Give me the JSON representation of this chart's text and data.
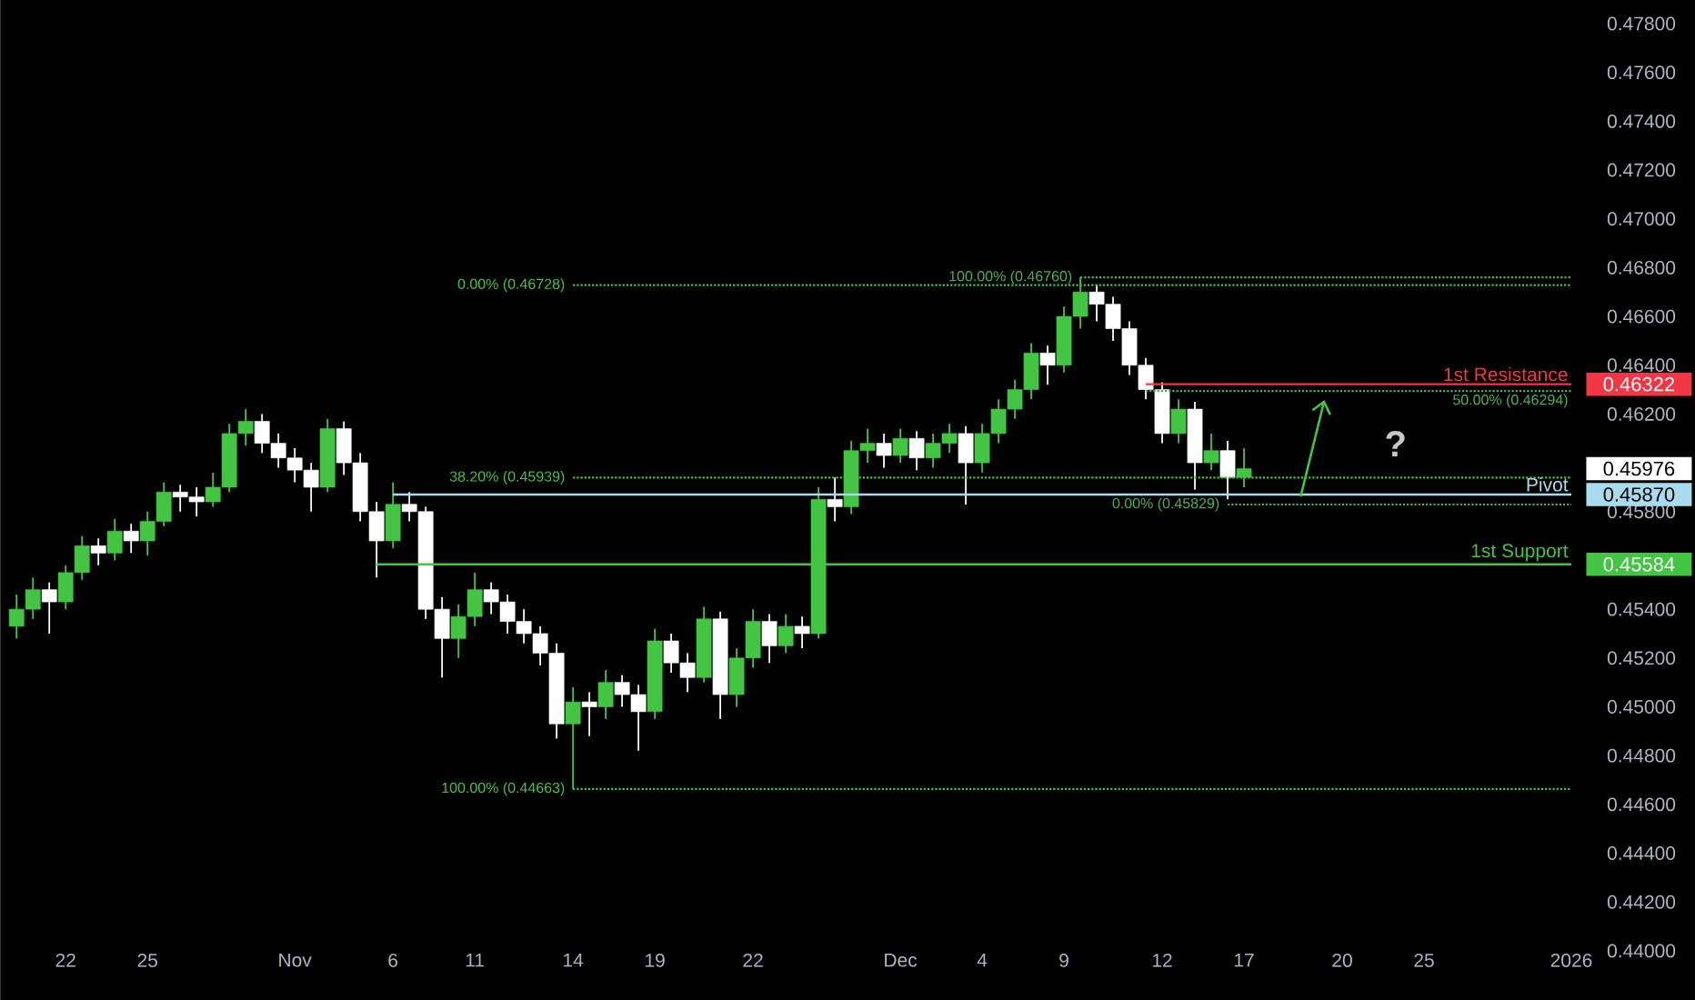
{
  "chart_data": {
    "type": "candlestick",
    "categories": [
      null,
      null,
      null,
      "22",
      null,
      null,
      null,
      null,
      "25",
      null,
      null,
      null,
      null,
      null,
      null,
      null,
      null,
      "Nov",
      null,
      null,
      null,
      null,
      null,
      "6",
      null,
      null,
      null,
      null,
      "11",
      null,
      null,
      null,
      null,
      null,
      "14",
      null,
      null,
      null,
      null,
      "19",
      null,
      null,
      null,
      null,
      null,
      "22",
      null,
      null,
      null,
      null,
      null,
      null,
      null,
      null,
      "Dec",
      null,
      null,
      null,
      null,
      "4",
      null,
      null,
      null,
      null,
      "9",
      null,
      null,
      null,
      null,
      null,
      "12",
      null,
      null,
      null,
      null,
      "17",
      null,
      null,
      null,
      null,
      null,
      "20",
      null,
      null,
      null,
      null,
      "25",
      null,
      null,
      null,
      null,
      null,
      null,
      null,
      null,
      "2026"
    ],
    "ohlc": [
      [
        0.4533,
        0.4546,
        0.4528,
        0.454
      ],
      [
        0.454,
        0.4553,
        0.4536,
        0.4548
      ],
      [
        0.4548,
        0.4551,
        0.453,
        0.4543
      ],
      [
        0.4543,
        0.4558,
        0.454,
        0.4555
      ],
      [
        0.4555,
        0.457,
        0.4552,
        0.4566
      ],
      [
        0.4566,
        0.4569,
        0.4558,
        0.4563
      ],
      [
        0.4563,
        0.4577,
        0.456,
        0.4572
      ],
      [
        0.4572,
        0.4575,
        0.4563,
        0.4568
      ],
      [
        0.4568,
        0.458,
        0.4562,
        0.4576
      ],
      [
        0.4576,
        0.4592,
        0.4574,
        0.4588
      ],
      [
        0.4588,
        0.4591,
        0.458,
        0.4586
      ],
      [
        0.4586,
        0.459,
        0.4578,
        0.4584
      ],
      [
        0.4584,
        0.4596,
        0.4582,
        0.459
      ],
      [
        0.459,
        0.4616,
        0.4588,
        0.4612
      ],
      [
        0.4612,
        0.4622,
        0.4607,
        0.4617
      ],
      [
        0.4617,
        0.462,
        0.4604,
        0.4608
      ],
      [
        0.4608,
        0.4612,
        0.4598,
        0.4602
      ],
      [
        0.4602,
        0.4606,
        0.4592,
        0.4597
      ],
      [
        0.4597,
        0.46,
        0.458,
        0.459
      ],
      [
        0.459,
        0.4618,
        0.4588,
        0.4614
      ],
      [
        0.4614,
        0.4617,
        0.4595,
        0.46
      ],
      [
        0.46,
        0.4604,
        0.4576,
        0.458
      ],
      [
        0.458,
        0.4584,
        0.4553,
        0.4568
      ],
      [
        0.4568,
        0.4592,
        0.4565,
        0.4583
      ],
      [
        0.4583,
        0.4588,
        0.4576,
        0.458
      ],
      [
        0.458,
        0.4582,
        0.4536,
        0.454
      ],
      [
        0.454,
        0.4545,
        0.4512,
        0.4528
      ],
      [
        0.4528,
        0.4542,
        0.452,
        0.4537
      ],
      [
        0.4537,
        0.4555,
        0.4533,
        0.4548
      ],
      [
        0.4548,
        0.4551,
        0.4538,
        0.4543
      ],
      [
        0.4543,
        0.4546,
        0.453,
        0.4535
      ],
      [
        0.4535,
        0.454,
        0.4526,
        0.453
      ],
      [
        0.453,
        0.4533,
        0.4517,
        0.4522
      ],
      [
        0.4522,
        0.4526,
        0.4487,
        0.4493
      ],
      [
        0.4493,
        0.4508,
        0.44663,
        0.4502
      ],
      [
        0.4502,
        0.4506,
        0.4488,
        0.45
      ],
      [
        0.45,
        0.4515,
        0.4495,
        0.451
      ],
      [
        0.451,
        0.4513,
        0.45,
        0.4505
      ],
      [
        0.4505,
        0.4509,
        0.4482,
        0.4498
      ],
      [
        0.4498,
        0.4532,
        0.4495,
        0.4527
      ],
      [
        0.4527,
        0.453,
        0.4514,
        0.4518
      ],
      [
        0.4518,
        0.4522,
        0.4506,
        0.4512
      ],
      [
        0.4512,
        0.4541,
        0.451,
        0.4536
      ],
      [
        0.4536,
        0.4539,
        0.4495,
        0.4505
      ],
      [
        0.4505,
        0.4524,
        0.45,
        0.452
      ],
      [
        0.452,
        0.454,
        0.4516,
        0.4535
      ],
      [
        0.4535,
        0.4538,
        0.4518,
        0.4525
      ],
      [
        0.4525,
        0.4538,
        0.4522,
        0.4533
      ],
      [
        0.4533,
        0.4537,
        0.4524,
        0.453
      ],
      [
        0.453,
        0.459,
        0.4528,
        0.4585
      ],
      [
        0.4585,
        0.4594,
        0.4576,
        0.4582
      ],
      [
        0.4582,
        0.4609,
        0.4579,
        0.4605
      ],
      [
        0.4605,
        0.4614,
        0.46,
        0.4608
      ],
      [
        0.4608,
        0.4612,
        0.4598,
        0.4603
      ],
      [
        0.4603,
        0.4614,
        0.46,
        0.461
      ],
      [
        0.461,
        0.4613,
        0.4597,
        0.4602
      ],
      [
        0.4602,
        0.4612,
        0.4598,
        0.4608
      ],
      [
        0.4608,
        0.4616,
        0.4604,
        0.4612
      ],
      [
        0.4612,
        0.4615,
        0.45829,
        0.46
      ],
      [
        0.46,
        0.4616,
        0.4596,
        0.4612
      ],
      [
        0.4612,
        0.4626,
        0.4608,
        0.4622
      ],
      [
        0.4622,
        0.4634,
        0.4618,
        0.463
      ],
      [
        0.463,
        0.4649,
        0.4626,
        0.4645
      ],
      [
        0.4645,
        0.4648,
        0.4632,
        0.464
      ],
      [
        0.464,
        0.4664,
        0.4637,
        0.466
      ],
      [
        0.466,
        0.4676,
        0.4655,
        0.467
      ],
      [
        0.467,
        0.4673,
        0.4658,
        0.4665
      ],
      [
        0.4665,
        0.4668,
        0.465,
        0.4655
      ],
      [
        0.4655,
        0.4658,
        0.4636,
        0.464
      ],
      [
        0.464,
        0.4643,
        0.4626,
        0.463
      ],
      [
        0.463,
        0.4633,
        0.4608,
        0.4612
      ],
      [
        0.4612,
        0.4626,
        0.4608,
        0.4622
      ],
      [
        0.4622,
        0.4625,
        0.4589,
        0.46
      ],
      [
        0.46,
        0.4612,
        0.4597,
        0.4605
      ],
      [
        0.4605,
        0.4609,
        0.4585,
        0.4594
      ],
      [
        0.4594,
        0.4606,
        0.459,
        0.45976
      ],
      null,
      null,
      null,
      null,
      null,
      null,
      null,
      null,
      null,
      null,
      null,
      null,
      null,
      null,
      null,
      null,
      null,
      null,
      null,
      null
    ],
    "colors": [
      "#43c443",
      "#43c443",
      "#ffffff",
      "#43c443",
      "#43c443",
      "#ffffff",
      "#43c443",
      "#ffffff",
      "#43c443",
      "#43c443",
      "#ffffff",
      "#ffffff",
      "#43c443",
      "#43c443",
      "#43c443",
      "#ffffff",
      "#ffffff",
      "#ffffff",
      "#ffffff",
      "#43c443",
      "#ffffff",
      "#ffffff",
      "#ffffff",
      "#43c443",
      "#ffffff",
      "#ffffff",
      "#ffffff",
      "#43c443",
      "#43c443",
      "#ffffff",
      "#ffffff",
      "#ffffff",
      "#ffffff",
      "#ffffff",
      "#43c443",
      "#ffffff",
      "#43c443",
      "#ffffff",
      "#ffffff",
      "#43c443",
      "#ffffff",
      "#ffffff",
      "#43c443",
      "#ffffff",
      "#43c443",
      "#43c443",
      "#ffffff",
      "#43c443",
      "#ffffff",
      "#43c443",
      "#ffffff",
      "#43c443",
      "#43c443",
      "#ffffff",
      "#43c443",
      "#ffffff",
      "#43c443",
      "#43c443",
      "#ffffff",
      "#43c443",
      "#43c443",
      "#43c443",
      "#43c443",
      "#ffffff",
      "#43c443",
      "#43c443",
      "#ffffff",
      "#ffffff",
      "#ffffff",
      "#ffffff",
      "#ffffff",
      "#43c443",
      "#ffffff",
      "#43c443",
      "#ffffff",
      "#43c443",
      null,
      null,
      null,
      null,
      null,
      null,
      null,
      null,
      null,
      null,
      null,
      null,
      null,
      null,
      null,
      null,
      null,
      null,
      null,
      null
    ],
    "series": [
      {
        "type": "line",
        "name": "0.00% (0.46728)",
        "color": "#43c443",
        "line_style": "dotted",
        "values": [
          null,
          null,
          null,
          null,
          null,
          null,
          null,
          null,
          null,
          null,
          null,
          null,
          null,
          null,
          null,
          null,
          null,
          null,
          null,
          null,
          null,
          null,
          null,
          null,
          null,
          null,
          null,
          null,
          null,
          null,
          null,
          null,
          null,
          null,
          0.46728,
          0.46728,
          0.46728,
          0.46728,
          0.46728,
          0.46728,
          0.46728,
          0.46728,
          0.46728,
          0.46728,
          0.46728,
          0.46728,
          0.46728,
          0.46728,
          0.46728,
          0.46728,
          0.46728,
          0.46728,
          0.46728,
          0.46728,
          0.46728,
          0.46728,
          0.46728,
          0.46728,
          0.46728,
          0.46728,
          0.46728,
          0.46728,
          0.46728,
          0.46728,
          0.46728,
          0.46728,
          0.46728,
          0.46728,
          0.46728,
          0.46728,
          0.46728,
          0.46728,
          0.46728,
          0.46728,
          0.46728,
          0.46728,
          0.46728,
          0.46728,
          0.46728,
          0.46728,
          0.46728,
          0.46728,
          0.46728,
          0.46728,
          0.46728,
          0.46728,
          0.46728,
          0.46728,
          0.46728,
          0.46728,
          0.46728,
          0.46728,
          0.46728,
          0.46728,
          0.46728,
          0.46728
        ]
      },
      {
        "type": "line",
        "name": "38.20% (0.45939)",
        "color": "#43c443",
        "line_style": "dotted",
        "values": [
          null,
          null,
          null,
          null,
          null,
          null,
          null,
          null,
          null,
          null,
          null,
          null,
          null,
          null,
          null,
          null,
          null,
          null,
          null,
          null,
          null,
          null,
          null,
          null,
          null,
          null,
          null,
          null,
          null,
          null,
          null,
          null,
          null,
          null,
          0.45939,
          0.45939,
          0.45939,
          0.45939,
          0.45939,
          0.45939,
          0.45939,
          0.45939,
          0.45939,
          0.45939,
          0.45939,
          0.45939,
          0.45939,
          0.45939,
          0.45939,
          0.45939,
          0.45939,
          0.45939,
          0.45939,
          0.45939,
          0.45939,
          0.45939,
          0.45939,
          0.45939,
          0.45939,
          0.45939,
          0.45939,
          0.45939,
          0.45939,
          0.45939,
          0.45939,
          0.45939,
          0.45939,
          0.45939,
          0.45939,
          0.45939,
          0.45939,
          0.45939,
          0.45939,
          0.45939,
          0.45939,
          0.45939,
          0.45939,
          0.45939,
          0.45939,
          0.45939,
          0.45939,
          0.45939,
          0.45939,
          0.45939,
          0.45939,
          0.45939,
          0.45939,
          0.45939,
          0.45939,
          0.45939,
          0.45939,
          0.45939,
          0.45939,
          0.45939,
          0.45939,
          0.45939
        ]
      },
      {
        "type": "line",
        "name": "100.00% (0.44663)",
        "color": "#43c443",
        "line_style": "dotted",
        "values": [
          null,
          null,
          null,
          null,
          null,
          null,
          null,
          null,
          null,
          null,
          null,
          null,
          null,
          null,
          null,
          null,
          null,
          null,
          null,
          null,
          null,
          null,
          null,
          null,
          null,
          null,
          null,
          null,
          null,
          null,
          null,
          null,
          null,
          null,
          0.44663,
          0.44663,
          0.44663,
          0.44663,
          0.44663,
          0.44663,
          0.44663,
          0.44663,
          0.44663,
          0.44663,
          0.44663,
          0.44663,
          0.44663,
          0.44663,
          0.44663,
          0.44663,
          0.44663,
          0.44663,
          0.44663,
          0.44663,
          0.44663,
          0.44663,
          0.44663,
          0.44663,
          0.44663,
          0.44663,
          0.44663,
          0.44663,
          0.44663,
          0.44663,
          0.44663,
          0.44663,
          0.44663,
          0.44663,
          0.44663,
          0.44663,
          0.44663,
          0.44663,
          0.44663,
          0.44663,
          0.44663,
          0.44663,
          0.44663,
          0.44663,
          0.44663,
          0.44663,
          0.44663,
          0.44663,
          0.44663,
          0.44663,
          0.44663,
          0.44663,
          0.44663,
          0.44663,
          0.44663,
          0.44663,
          0.44663,
          0.44663,
          0.44663,
          0.44663,
          0.44663,
          0.44663
        ]
      },
      {
        "type": "line",
        "name": "100.00% (0.46760)",
        "color": "#4caf50",
        "line_style": "dotted",
        "values": [
          null,
          null,
          null,
          null,
          null,
          null,
          null,
          null,
          null,
          null,
          null,
          null,
          null,
          null,
          null,
          null,
          null,
          null,
          null,
          null,
          null,
          null,
          null,
          null,
          null,
          null,
          null,
          null,
          null,
          null,
          null,
          null,
          null,
          null,
          null,
          null,
          null,
          null,
          null,
          null,
          null,
          null,
          null,
          null,
          null,
          null,
          null,
          null,
          null,
          null,
          null,
          null,
          null,
          null,
          null,
          null,
          null,
          null,
          null,
          null,
          null,
          null,
          null,
          null,
          null,
          0.4676,
          0.4676,
          0.4676,
          0.4676,
          0.4676,
          0.4676,
          0.4676,
          0.4676,
          0.4676,
          0.4676,
          0.4676,
          0.4676,
          0.4676,
          0.4676,
          0.4676,
          0.4676,
          0.4676,
          0.4676,
          0.4676,
          0.4676,
          0.4676,
          0.4676,
          0.4676,
          0.4676,
          0.4676,
          0.4676,
          0.4676,
          0.4676,
          0.4676,
          0.4676,
          0.4676
        ]
      },
      {
        "type": "line",
        "name": "50.00% (0.46294)",
        "color": "#4caf50",
        "line_style": "dotted",
        "values": [
          null,
          null,
          null,
          null,
          null,
          null,
          null,
          null,
          null,
          null,
          null,
          null,
          null,
          null,
          null,
          null,
          null,
          null,
          null,
          null,
          null,
          null,
          null,
          null,
          null,
          null,
          null,
          null,
          null,
          null,
          null,
          null,
          null,
          null,
          null,
          null,
          null,
          null,
          null,
          null,
          null,
          null,
          null,
          null,
          null,
          null,
          null,
          null,
          null,
          null,
          null,
          null,
          null,
          null,
          null,
          null,
          null,
          null,
          null,
          null,
          null,
          null,
          null,
          null,
          null,
          null,
          null,
          null,
          null,
          0.46294,
          0.46294,
          0.46294,
          0.46294,
          0.46294,
          0.46294,
          0.46294,
          0.46294,
          0.46294,
          0.46294,
          0.46294,
          0.46294,
          0.46294,
          0.46294,
          0.46294,
          0.46294,
          0.46294,
          0.46294,
          0.46294,
          0.46294,
          0.46294,
          0.46294,
          0.46294,
          0.46294,
          0.46294,
          0.46294,
          0.46294
        ]
      },
      {
        "type": "line",
        "name": "0.00% (0.45829)",
        "color": "#4caf50",
        "line_style": "dotted",
        "values": [
          null,
          null,
          null,
          null,
          null,
          null,
          null,
          null,
          null,
          null,
          null,
          null,
          null,
          null,
          null,
          null,
          null,
          null,
          null,
          null,
          null,
          null,
          null,
          null,
          null,
          null,
          null,
          null,
          null,
          null,
          null,
          null,
          null,
          null,
          null,
          null,
          null,
          null,
          null,
          null,
          null,
          null,
          null,
          null,
          null,
          null,
          null,
          null,
          null,
          null,
          null,
          null,
          null,
          null,
          null,
          null,
          null,
          null,
          null,
          null,
          null,
          null,
          null,
          null,
          null,
          null,
          null,
          null,
          null,
          null,
          null,
          null,
          null,
          null,
          0.45829,
          0.45829,
          0.45829,
          0.45829,
          0.45829,
          0.45829,
          0.45829,
          0.45829,
          0.45829,
          0.45829,
          0.45829,
          0.45829,
          0.45829,
          0.45829,
          0.45829,
          0.45829,
          0.45829,
          0.45829,
          0.45829,
          0.45829,
          0.45829,
          0.45829
        ]
      },
      {
        "type": "line",
        "name": "1st Resistance",
        "color": "#f23645",
        "line_style": "solid",
        "values": [
          null,
          null,
          null,
          null,
          null,
          null,
          null,
          null,
          null,
          null,
          null,
          null,
          null,
          null,
          null,
          null,
          null,
          null,
          null,
          null,
          null,
          null,
          null,
          null,
          null,
          null,
          null,
          null,
          null,
          null,
          null,
          null,
          null,
          null,
          null,
          null,
          null,
          null,
          null,
          null,
          null,
          null,
          null,
          null,
          null,
          null,
          null,
          null,
          null,
          null,
          null,
          null,
          null,
          null,
          null,
          null,
          null,
          null,
          null,
          null,
          null,
          null,
          null,
          null,
          null,
          null,
          null,
          null,
          null,
          0.46322,
          0.46322,
          0.46322,
          0.46322,
          0.46322,
          0.46322,
          0.46322,
          0.46322,
          0.46322,
          0.46322,
          0.46322,
          0.46322,
          0.46322,
          0.46322,
          0.46322,
          0.46322,
          0.46322,
          0.46322,
          0.46322,
          0.46322,
          0.46322,
          0.46322,
          0.46322,
          0.46322,
          0.46322,
          0.46322,
          0.46322
        ],
        "value_labels": [
          null,
          null,
          null,
          null,
          null,
          null,
          null,
          null,
          null,
          null,
          null,
          null,
          null,
          null,
          null,
          null,
          null,
          null,
          null,
          null,
          null,
          null,
          null,
          null,
          null,
          null,
          null,
          null,
          null,
          null,
          null,
          null,
          null,
          null,
          null,
          null,
          null,
          null,
          null,
          null,
          null,
          null,
          null,
          null,
          null,
          null,
          null,
          null,
          null,
          null,
          null,
          null,
          null,
          null,
          null,
          null,
          null,
          null,
          null,
          null,
          null,
          null,
          null,
          null,
          null,
          null,
          null,
          null,
          null,
          null,
          null,
          null,
          null,
          null,
          null,
          null,
          null,
          null,
          null,
          null,
          null,
          null,
          null,
          null,
          null,
          null,
          null,
          null,
          null,
          null,
          null,
          null,
          null,
          null,
          null,
          "0.46322"
        ]
      },
      {
        "type": "line",
        "name": "Pivot",
        "color": "#a8dcec",
        "line_style": "solid",
        "values": [
          null,
          null,
          null,
          null,
          null,
          null,
          null,
          null,
          null,
          null,
          null,
          null,
          null,
          null,
          null,
          null,
          null,
          null,
          null,
          null,
          null,
          null,
          null,
          0.4587,
          0.4587,
          0.4587,
          0.4587,
          0.4587,
          0.4587,
          0.4587,
          0.4587,
          0.4587,
          0.4587,
          0.4587,
          0.4587,
          0.4587,
          0.4587,
          0.4587,
          0.4587,
          0.4587,
          0.4587,
          0.4587,
          0.4587,
          0.4587,
          0.4587,
          0.4587,
          0.4587,
          0.4587,
          0.4587,
          0.4587,
          0.4587,
          0.4587,
          0.4587,
          0.4587,
          0.4587,
          0.4587,
          0.4587,
          0.4587,
          0.4587,
          0.4587,
          0.4587,
          0.4587,
          0.4587,
          0.4587,
          0.4587,
          0.4587,
          0.4587,
          0.4587,
          0.4587,
          0.4587,
          0.4587,
          0.4587,
          0.4587,
          0.4587,
          0.4587,
          0.4587,
          0.4587,
          0.4587,
          0.4587,
          0.4587,
          0.4587,
          0.4587,
          0.4587,
          0.4587,
          0.4587,
          0.4587,
          0.4587,
          0.4587,
          0.4587,
          0.4587,
          0.4587,
          0.4587,
          0.4587,
          0.4587,
          0.4587,
          0.4587
        ],
        "value_labels": [
          null,
          null,
          null,
          null,
          null,
          null,
          null,
          null,
          null,
          null,
          null,
          null,
          null,
          null,
          null,
          null,
          null,
          null,
          null,
          null,
          null,
          null,
          null,
          null,
          null,
          null,
          null,
          null,
          null,
          null,
          null,
          null,
          null,
          null,
          null,
          null,
          null,
          null,
          null,
          null,
          null,
          null,
          null,
          null,
          null,
          null,
          null,
          null,
          null,
          null,
          null,
          null,
          null,
          null,
          null,
          null,
          null,
          null,
          null,
          null,
          null,
          null,
          null,
          null,
          null,
          null,
          null,
          null,
          null,
          null,
          null,
          null,
          null,
          null,
          null,
          null,
          null,
          null,
          null,
          null,
          null,
          null,
          null,
          null,
          null,
          null,
          null,
          null,
          null,
          null,
          null,
          null,
          null,
          null,
          null,
          "0.45870"
        ]
      },
      {
        "type": "line",
        "name": "1st Support",
        "color": "#43c443",
        "line_style": "solid",
        "values": [
          null,
          null,
          null,
          null,
          null,
          null,
          null,
          null,
          null,
          null,
          null,
          null,
          null,
          null,
          null,
          null,
          null,
          null,
          null,
          null,
          null,
          null,
          0.45584,
          0.45584,
          0.45584,
          0.45584,
          0.45584,
          0.45584,
          0.45584,
          0.45584,
          0.45584,
          0.45584,
          0.45584,
          0.45584,
          0.45584,
          0.45584,
          0.45584,
          0.45584,
          0.45584,
          0.45584,
          0.45584,
          0.45584,
          0.45584,
          0.45584,
          0.45584,
          0.45584,
          0.45584,
          0.45584,
          0.45584,
          0.45584,
          0.45584,
          0.45584,
          0.45584,
          0.45584,
          0.45584,
          0.45584,
          0.45584,
          0.45584,
          0.45584,
          0.45584,
          0.45584,
          0.45584,
          0.45584,
          0.45584,
          0.45584,
          0.45584,
          0.45584,
          0.45584,
          0.45584,
          0.45584,
          0.45584,
          0.45584,
          0.45584,
          0.45584,
          0.45584,
          0.45584,
          0.45584,
          0.45584,
          0.45584,
          0.45584,
          0.45584,
          0.45584,
          0.45584,
          0.45584,
          0.45584,
          0.45584,
          0.45584,
          0.45584,
          0.45584,
          0.45584,
          0.45584,
          0.45584,
          0.45584,
          0.45584,
          0.45584,
          0.45584
        ],
        "value_labels": [
          null,
          null,
          null,
          null,
          null,
          null,
          null,
          null,
          null,
          null,
          null,
          null,
          null,
          null,
          null,
          null,
          null,
          null,
          null,
          null,
          null,
          null,
          null,
          null,
          null,
          null,
          null,
          null,
          null,
          null,
          null,
          null,
          null,
          null,
          null,
          null,
          null,
          null,
          null,
          null,
          null,
          null,
          null,
          null,
          null,
          null,
          null,
          null,
          null,
          null,
          null,
          null,
          null,
          null,
          null,
          null,
          null,
          null,
          null,
          null,
          null,
          null,
          null,
          null,
          null,
          null,
          null,
          null,
          null,
          null,
          null,
          null,
          null,
          null,
          null,
          null,
          null,
          null,
          null,
          null,
          null,
          null,
          null,
          null,
          null,
          null,
          null,
          null,
          null,
          null,
          null,
          null,
          null,
          null,
          null,
          "0.45584"
        ]
      }
    ],
    "annotations": [
      "0.45976",
      "?"
    ],
    "ylim": [
      0.44,
      0.478
    ],
    "yticks": [
      {
        "value": 0.44,
        "label": "0.44000"
      },
      {
        "value": 0.442,
        "label": "0.44200"
      },
      {
        "value": 0.444,
        "label": "0.44400"
      },
      {
        "value": 0.446,
        "label": "0.44600"
      },
      {
        "value": 0.448,
        "label": "0.44800"
      },
      {
        "value": 0.45,
        "label": "0.45000"
      },
      {
        "value": 0.452,
        "label": "0.45200"
      },
      {
        "value": 0.454,
        "label": "0.45400"
      },
      {
        "value": 0.458,
        "label": "0.45800"
      },
      {
        "value": 0.462,
        "label": "0.46200"
      },
      {
        "value": 0.464,
        "label": "0.46400"
      },
      {
        "value": 0.466,
        "label": "0.46600"
      },
      {
        "value": 0.468,
        "label": "0.46800"
      },
      {
        "value": 0.47,
        "label": "0.47000"
      },
      {
        "value": 0.472,
        "label": "0.47200"
      },
      {
        "value": 0.474,
        "label": "0.47400"
      },
      {
        "value": 0.476,
        "label": "0.47600"
      },
      {
        "value": 0.478,
        "label": "0.47800"
      }
    ]
  }
}
